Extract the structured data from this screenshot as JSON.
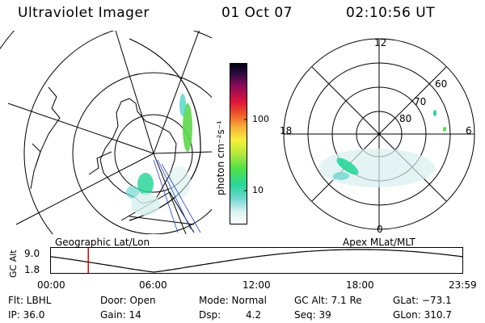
{
  "header": {
    "instrument": "Ultraviolet Imager",
    "date": "01 Oct 07",
    "time": "02:10:56 UT"
  },
  "colorbar": {
    "label": "photon cm⁻²s⁻¹",
    "ticks": [
      "100",
      "10"
    ],
    "scale": "log",
    "colors": [
      "#ffffff",
      "#d8f0f0",
      "#6fd8d0",
      "#2ad69a",
      "#4ce04c",
      "#b7e83a",
      "#f7f03c",
      "#f7b33a",
      "#f05a2a",
      "#e0143c",
      "#8b0a5a",
      "#2a0a40",
      "#000010"
    ]
  },
  "left_map": {
    "label": "Geographic Lat/Lon"
  },
  "right_map": {
    "label": "Apex MLat/MLT",
    "mlt_labels": {
      "top": "12",
      "bottom": "0",
      "left": "18",
      "right": "6"
    },
    "lat_labels": [
      "60",
      "70",
      "80"
    ]
  },
  "altitude_plot": {
    "ylabel": "GC Alt",
    "ymax_label": "9.0",
    "ymin_label": "1.8",
    "xticks": [
      "00:00",
      "06:00",
      "12:00",
      "18:00",
      "23:59"
    ],
    "current_time_marker_hours": 2.18,
    "marker_color": "#e00000"
  },
  "info": {
    "row1": {
      "filter": "Flt: LBHL",
      "door": "Door: Open",
      "mode": "Mode: Normal",
      "gc_alt": "GC Alt: 7.1 Re",
      "glat": "GLat: −73.1"
    },
    "row2": {
      "ip": "IP: 36.0",
      "gain": "Gain: 14",
      "dsp_label": "Dsp:",
      "dsp_value": "4.2",
      "seq": "Seq: 39",
      "glon": "GLon: 310.7"
    }
  }
}
